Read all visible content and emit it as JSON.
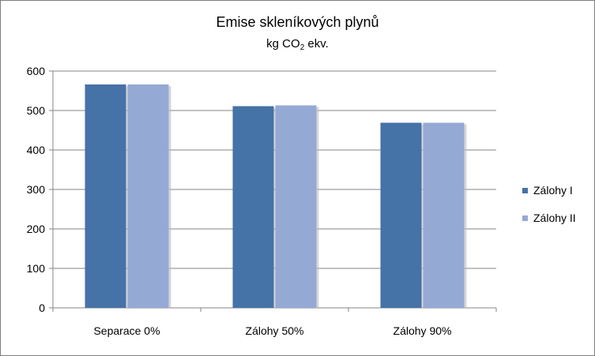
{
  "chart_data": {
    "type": "bar",
    "title": "Emise skleníkových plynů",
    "subtitle": {
      "before": "kg CO",
      "sub": "2",
      "after": " ekv."
    },
    "categories": [
      "Separace 0%",
      "Zálohy 50%",
      "Zálohy 90%"
    ],
    "series": [
      {
        "name": "Zálohy I",
        "color": "#4572a7",
        "values": [
          566,
          511,
          469
        ]
      },
      {
        "name": "Zálohy II",
        "color": "#95a9d5",
        "values": [
          566,
          513,
          469
        ]
      }
    ],
    "ylim": [
      0,
      600
    ],
    "yticks": [
      0,
      100,
      200,
      300,
      400,
      500,
      600
    ],
    "grid": true,
    "legend_position": "right"
  }
}
